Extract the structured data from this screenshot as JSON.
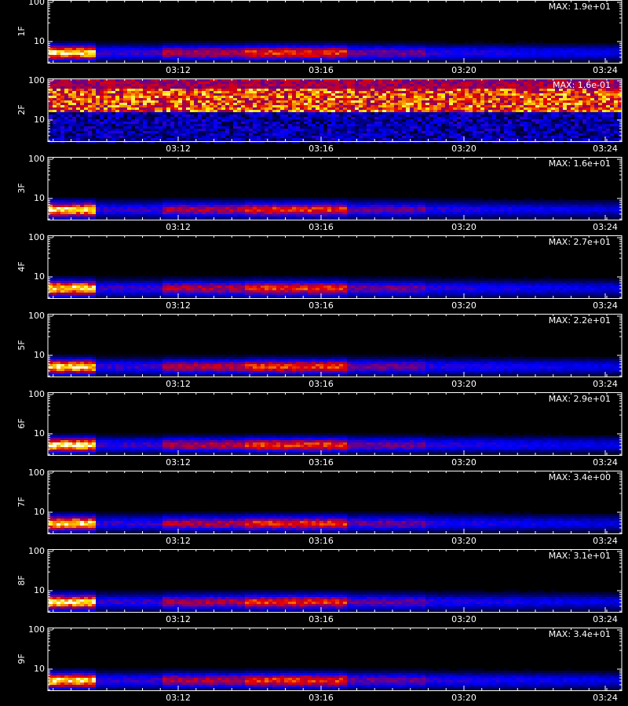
{
  "panels": [
    {
      "label": "1F",
      "max": "MAX: 1.9e+01"
    },
    {
      "label": "2F",
      "max": "MAX: 1.6e-01"
    },
    {
      "label": "3F",
      "max": "MAX: 1.6e+01"
    },
    {
      "label": "4F",
      "max": "MAX: 2.7e+01"
    },
    {
      "label": "5F",
      "max": "MAX: 2.2e+01"
    },
    {
      "label": "6F",
      "max": "MAX: 2.9e+01"
    },
    {
      "label": "7F",
      "max": "MAX: 3.4e+00"
    },
    {
      "label": "8F",
      "max": "MAX: 3.1e+01"
    },
    {
      "label": "9F",
      "max": "MAX: 3.4e+01"
    }
  ],
  "y_tick_labels": [
    "100",
    "10"
  ],
  "x_tick_labels": [
    "03:12",
    "03:16",
    "03:20",
    "03:24"
  ]
}
